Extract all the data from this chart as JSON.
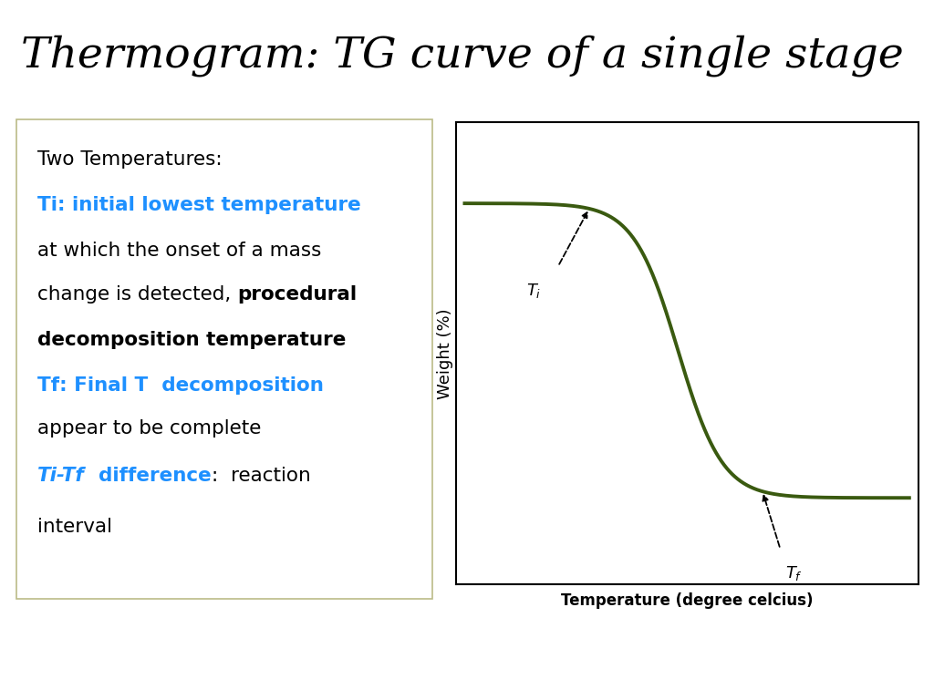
{
  "title": "Thermogram: TG curve of a single stage",
  "title_bg": "#FF88FF",
  "title_fontsize": 34,
  "title_color": "#000000",
  "text_box_bg": "#FFFFCC",
  "curve_color": "#3A5A10",
  "curve_linewidth": 2.8,
  "ylabel": "Weight (%)",
  "xlabel": "Temperature (degree celcius)",
  "plot_bg": "#FFFFFF",
  "slide_bg": "#FFFFFF",
  "blue_color": "#1E90FF",
  "black_color": "#000000"
}
